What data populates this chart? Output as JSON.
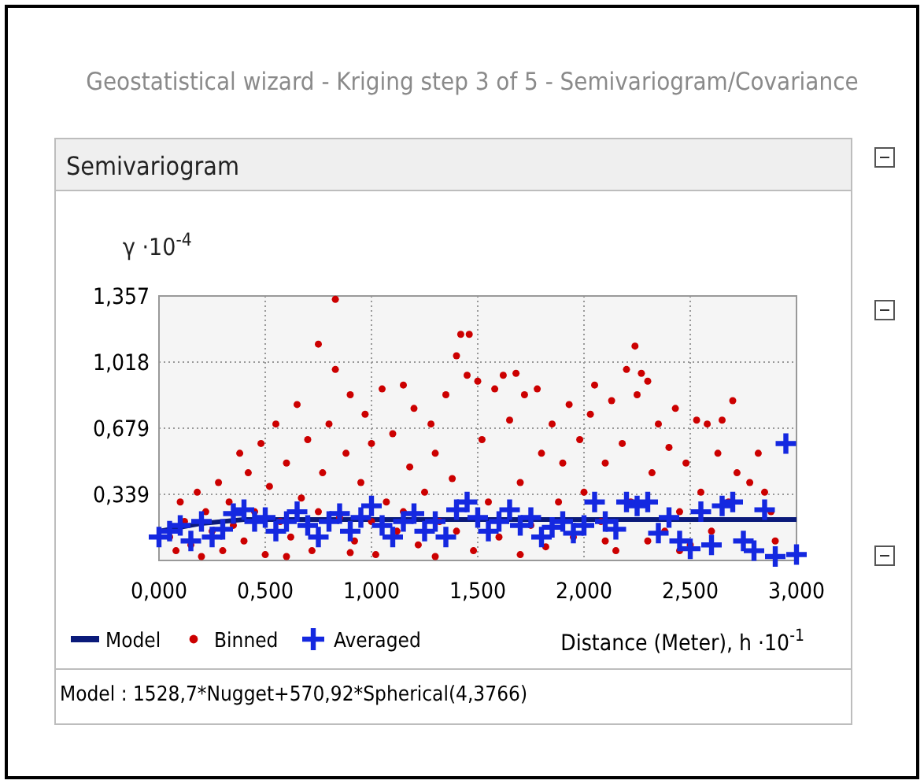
{
  "chart_data": {
    "type": "scatter",
    "title": "Geostatistical wizard - Kriging step 3 of 5 - Semivariogram/Covariance",
    "subtitle": "Semivariogram",
    "xlabel": "Distance (Meter), h ·10$^{-1}$",
    "ylabel": "γ ·10$^{-4}$",
    "annotations": [
      "Model : 1528,7*Nugget+570,92*Spherical(4,3766)"
    ],
    "xlim": [
      0,
      3
    ],
    "ylim": [
      0,
      1.357
    ],
    "xticks": [
      {
        "value": 0,
        "label": "0,000"
      },
      {
        "value": 0.5,
        "label": "0,500"
      },
      {
        "value": 1,
        "label": "1,000"
      },
      {
        "value": 1.5,
        "label": "1,500"
      },
      {
        "value": 2,
        "label": "2,000"
      },
      {
        "value": 2.5,
        "label": "2,500"
      },
      {
        "value": 3,
        "label": "3,000"
      }
    ],
    "yticks": [
      {
        "value": 0.339,
        "label": "0,339"
      },
      {
        "value": 0.679,
        "label": "0,679"
      },
      {
        "value": 1.018,
        "label": "1,018"
      },
      {
        "value": 1.357,
        "label": "1,357"
      }
    ],
    "grid": true,
    "legend": "bottom",
    "series": [
      {
        "name": "Model",
        "type": "line",
        "color": "#0a1a7a",
        "marker": "none",
        "x": [
          0,
          0.1,
          0.2,
          0.3,
          0.4,
          0.44,
          3
        ],
        "values": [
          0.15,
          0.17,
          0.19,
          0.2,
          0.21,
          0.21,
          0.21
        ]
      },
      {
        "name": "Binned",
        "color": "#cc0000",
        "marker": "circle",
        "x": [
          0.05,
          0.08,
          0.1,
          0.12,
          0.15,
          0.18,
          0.2,
          0.22,
          0.25,
          0.28,
          0.3,
          0.33,
          0.35,
          0.38,
          0.4,
          0.42,
          0.45,
          0.48,
          0.5,
          0.52,
          0.55,
          0.57,
          0.6,
          0.62,
          0.65,
          0.67,
          0.7,
          0.72,
          0.75,
          0.77,
          0.8,
          0.83,
          0.83,
          0.85,
          0.88,
          0.9,
          0.92,
          0.95,
          0.97,
          1.0,
          1.02,
          1.05,
          1.07,
          1.1,
          1.12,
          1.15,
          1.18,
          1.2,
          1.22,
          1.25,
          1.28,
          1.3,
          1.32,
          1.35,
          1.38,
          1.4,
          1.42,
          1.46,
          1.45,
          1.48,
          1.5,
          1.52,
          1.55,
          1.58,
          1.6,
          1.62,
          1.65,
          1.68,
          1.7,
          1.72,
          1.75,
          1.78,
          1.8,
          1.82,
          1.85,
          1.88,
          1.9,
          1.93,
          1.95,
          1.98,
          2.0,
          2.03,
          2.05,
          2.08,
          2.1,
          2.13,
          2.15,
          2.18,
          2.2,
          2.22,
          2.24,
          2.25,
          2.27,
          2.3,
          2.32,
          2.35,
          2.38,
          2.4,
          2.43,
          2.45,
          2.48,
          2.5,
          2.53,
          2.55,
          2.58,
          2.6,
          2.63,
          2.65,
          2.68,
          2.7,
          2.72,
          2.78,
          2.82,
          2.85,
          2.88,
          2.9,
          0.6,
          0.9,
          1.3,
          1.7,
          2.1,
          2.45,
          1.0,
          1.4,
          2.3,
          0.75,
          1.15
        ],
        "values": [
          0.12,
          0.05,
          0.3,
          0.2,
          0.08,
          0.35,
          0.02,
          0.25,
          0.15,
          0.4,
          0.05,
          0.3,
          0.18,
          0.55,
          0.1,
          0.45,
          0.25,
          0.6,
          0.03,
          0.38,
          0.7,
          0.2,
          0.5,
          0.12,
          0.8,
          0.32,
          0.62,
          0.05,
          1.11,
          0.45,
          0.7,
          1.34,
          0.98,
          0.22,
          0.55,
          0.85,
          0.1,
          0.4,
          0.75,
          0.6,
          0.03,
          0.88,
          0.3,
          0.65,
          0.15,
          0.9,
          0.48,
          0.78,
          0.08,
          0.35,
          0.7,
          0.55,
          0.2,
          0.85,
          0.42,
          1.05,
          1.16,
          1.16,
          0.95,
          0.05,
          0.92,
          0.62,
          0.3,
          0.88,
          0.12,
          0.95,
          0.72,
          0.96,
          0.4,
          0.85,
          0.18,
          0.88,
          0.55,
          0.07,
          0.7,
          0.3,
          0.5,
          0.8,
          0.12,
          0.62,
          0.35,
          0.75,
          0.9,
          0.2,
          0.5,
          0.82,
          0.05,
          0.6,
          0.98,
          0.3,
          1.1,
          0.85,
          0.96,
          0.92,
          0.45,
          0.7,
          0.15,
          0.58,
          0.78,
          0.25,
          0.5,
          0.08,
          0.72,
          0.35,
          0.7,
          0.15,
          0.55,
          0.72,
          0.3,
          0.82,
          0.45,
          0.4,
          0.55,
          0.35,
          0.25,
          0.1,
          0.02,
          0.04,
          0.02,
          0.03,
          0.1,
          0.05,
          0.2,
          0.15,
          0.1,
          0.25,
          0.25
        ]
      },
      {
        "name": "Averaged",
        "color": "#1428e0",
        "marker": "cross",
        "x": [
          0,
          0.05,
          0.1,
          0.15,
          0.2,
          0.25,
          0.3,
          0.35,
          0.4,
          0.45,
          0.5,
          0.55,
          0.6,
          0.65,
          0.7,
          0.75,
          0.8,
          0.85,
          0.9,
          0.95,
          1.0,
          1.05,
          1.1,
          1.15,
          1.2,
          1.25,
          1.3,
          1.35,
          1.4,
          1.45,
          1.5,
          1.55,
          1.6,
          1.65,
          1.7,
          1.75,
          1.8,
          1.85,
          1.9,
          1.95,
          2.0,
          2.05,
          2.1,
          2.15,
          2.2,
          2.25,
          2.3,
          2.35,
          2.4,
          2.45,
          2.5,
          2.55,
          2.6,
          2.65,
          2.7,
          2.75,
          2.8,
          2.85,
          2.9,
          2.95,
          3.0
        ],
        "values": [
          0.12,
          0.15,
          0.18,
          0.1,
          0.2,
          0.12,
          0.16,
          0.24,
          0.26,
          0.2,
          0.22,
          0.15,
          0.2,
          0.25,
          0.18,
          0.12,
          0.2,
          0.24,
          0.15,
          0.22,
          0.28,
          0.18,
          0.12,
          0.2,
          0.24,
          0.15,
          0.2,
          0.12,
          0.26,
          0.3,
          0.22,
          0.15,
          0.2,
          0.26,
          0.18,
          0.22,
          0.12,
          0.17,
          0.2,
          0.14,
          0.18,
          0.3,
          0.2,
          0.16,
          0.3,
          0.28,
          0.3,
          0.14,
          0.22,
          0.1,
          0.06,
          0.25,
          0.08,
          0.28,
          0.3,
          0.1,
          0.05,
          0.26,
          0.02,
          0.6,
          0.03
        ]
      }
    ]
  }
}
